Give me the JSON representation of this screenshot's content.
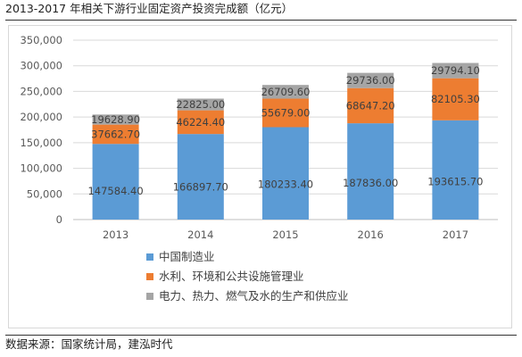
{
  "page": {
    "title": "2013-2017 年相关下游行业固定资产投资完成额（亿元）",
    "source": "数据来源：国家统计局，建泓时代"
  },
  "chart_data": {
    "type": "bar",
    "stacked": true,
    "title": "2013-2017 年相关下游行业固定资产投资完成额（亿元）",
    "xlabel": "",
    "ylabel": "",
    "categories": [
      "2013",
      "2014",
      "2015",
      "2016",
      "2017"
    ],
    "ylim": [
      0,
      350000
    ],
    "yticks": [
      0,
      50000,
      100000,
      150000,
      200000,
      250000,
      300000,
      350000
    ],
    "ytick_labels": [
      "0",
      "50,000",
      "100,000",
      "150,000",
      "200,000",
      "250,000",
      "300,000",
      "350,000"
    ],
    "grid": true,
    "legend_position": "bottom",
    "series": [
      {
        "name": "中国制造业",
        "color": "#5b9bd5",
        "values": [
          147584.4,
          166897.7,
          180233.4,
          187836.0,
          193615.7
        ],
        "labels": [
          "147584.40",
          "166897.70",
          "180233.40",
          "187836.00",
          "193615.70"
        ]
      },
      {
        "name": "水利、环境和公共设施管理业",
        "color": "#ed7d31",
        "values": [
          37662.7,
          46224.4,
          55679.0,
          68647.2,
          82105.3
        ],
        "labels": [
          "37662.70",
          "46224.40",
          "55679.00",
          "68647.20",
          "82105.30"
        ]
      },
      {
        "name": "电力、热力、燃气及水的生产和供应业",
        "color": "#a5a5a5",
        "values": [
          19628.9,
          22825.0,
          26709.6,
          29736.0,
          29794.1
        ],
        "labels": [
          "19628.90",
          "22825.00",
          "26709.60",
          "29736.00",
          "29794.10"
        ]
      }
    ]
  }
}
